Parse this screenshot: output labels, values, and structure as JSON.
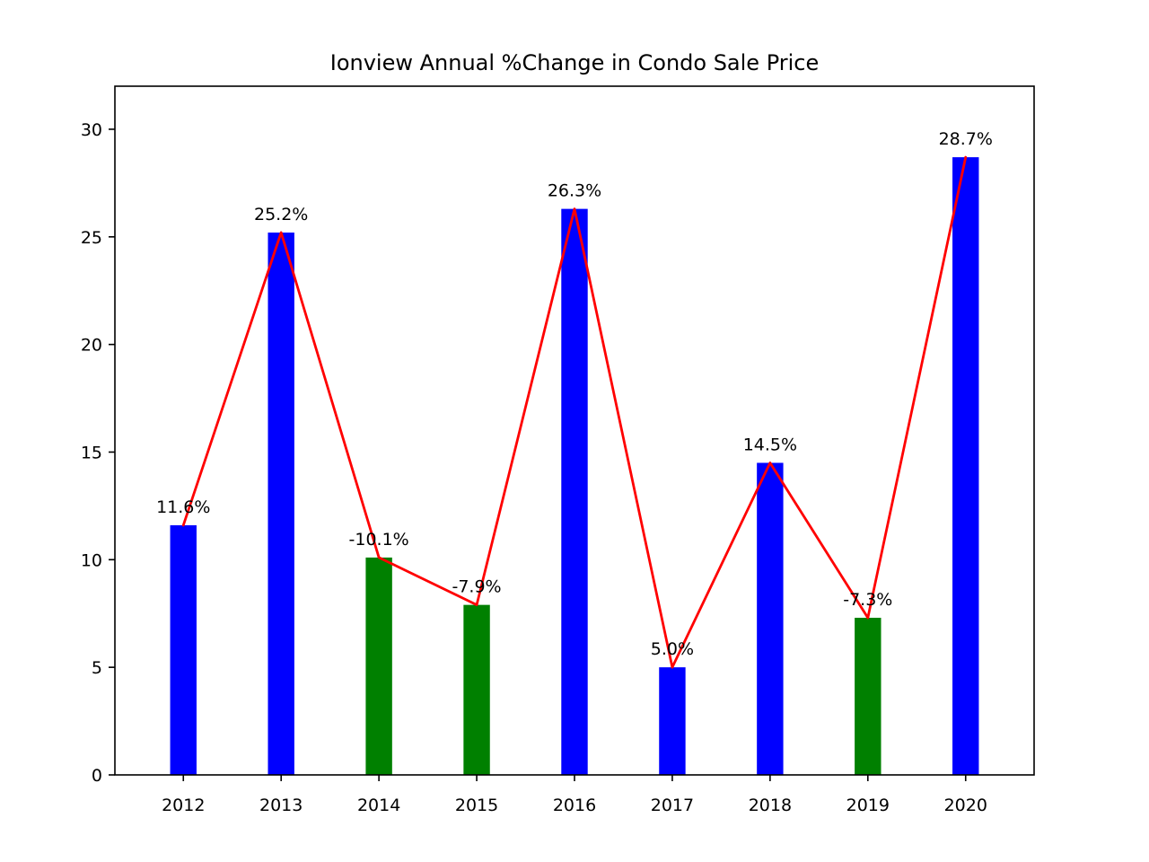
{
  "chart_data": {
    "type": "bar",
    "title": "Ionview Annual %Change in Condo Sale Price",
    "xlabel": "",
    "ylabel": "",
    "categories": [
      "2012",
      "2013",
      "2014",
      "2015",
      "2016",
      "2017",
      "2018",
      "2019",
      "2020"
    ],
    "values": [
      11.6,
      25.2,
      10.1,
      7.9,
      26.3,
      5.0,
      14.5,
      7.3,
      28.7
    ],
    "signed_change": [
      11.6,
      25.2,
      -10.1,
      -7.9,
      26.3,
      5.0,
      14.5,
      -7.3,
      28.7
    ],
    "data_labels": [
      "11.6%",
      "25.2%",
      "-10.1%",
      "-7.9%",
      "26.3%",
      "5.0%",
      "14.5%",
      "-7.3%",
      "28.7%"
    ],
    "ylim": [
      0,
      32
    ],
    "yticks": [
      0,
      5,
      10,
      15,
      20,
      25,
      30
    ],
    "grid": false,
    "legend": "none",
    "colors": {
      "positive_bar": "#0000ff",
      "negative_bar": "#008000",
      "line": "#ff0000"
    },
    "overlay_line": {
      "type": "line",
      "values": [
        11.6,
        25.2,
        10.1,
        7.9,
        26.3,
        5.0,
        14.5,
        7.3,
        28.7
      ]
    }
  }
}
